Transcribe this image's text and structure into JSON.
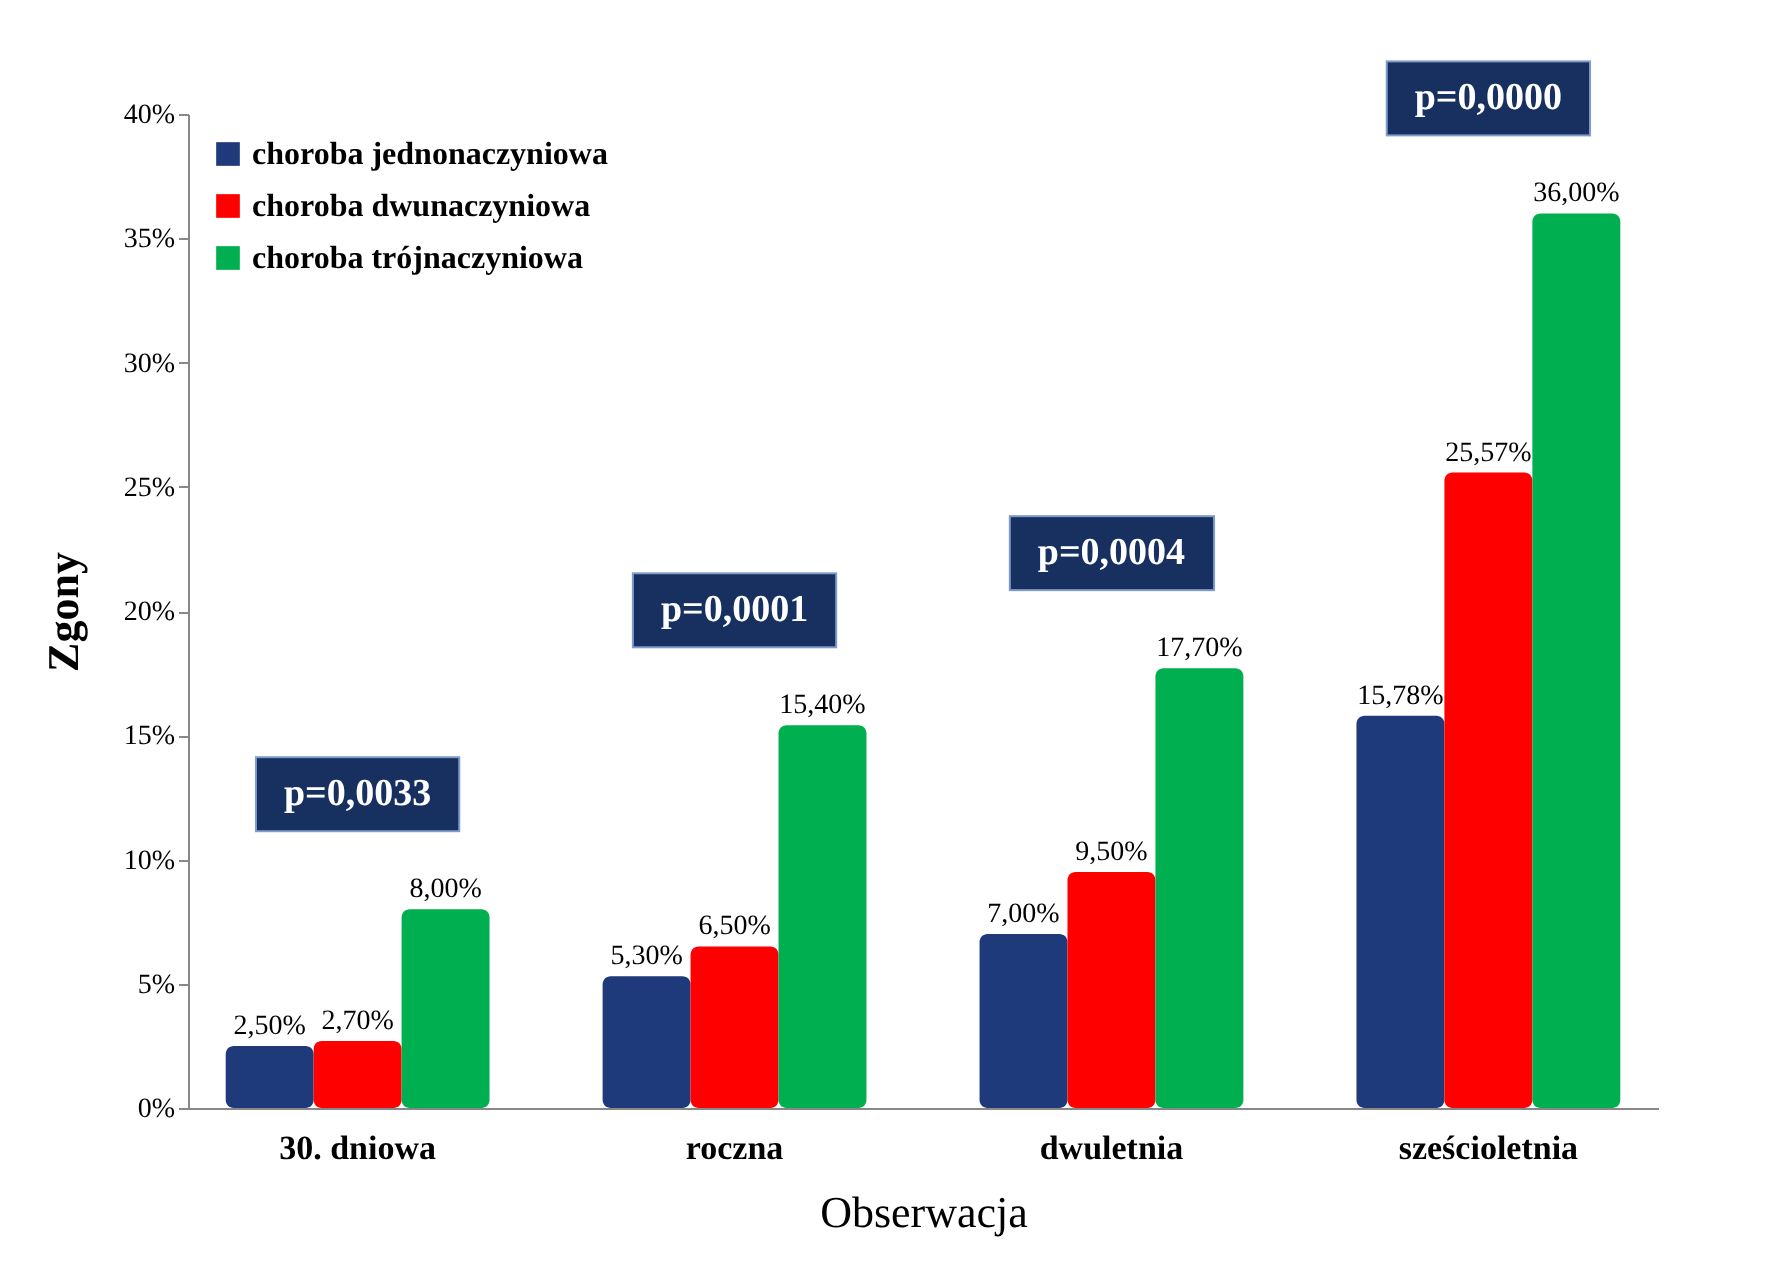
{
  "chart_data": {
    "type": "bar",
    "xlabel": "Obserwacja",
    "ylabel": "Zgony",
    "categories": [
      "30. dniowa",
      "roczna",
      "dwuletnia",
      "sześcioletnia"
    ],
    "series": [
      {
        "name": "choroba jednonaczyniowa",
        "color": "#1f3a7a",
        "values": [
          2.5,
          5.3,
          7.0,
          15.78
        ],
        "value_labels": [
          "2,50%",
          "5,30%",
          "7,00%",
          "15,78%"
        ]
      },
      {
        "name": "choroba dwunaczyniowa",
        "color": "#ff0000",
        "values": [
          2.7,
          6.5,
          9.5,
          25.57
        ],
        "value_labels": [
          "2,70%",
          "6,50%",
          "9,50%",
          "25,57%"
        ]
      },
      {
        "name": "choroba trójnaczyniowa",
        "color": "#00b050",
        "values": [
          8.0,
          15.4,
          17.7,
          36.0
        ],
        "value_labels": [
          "8,00%",
          "15,40%",
          "17,70%",
          "36,00%"
        ]
      }
    ],
    "ylim": [
      0,
      40
    ],
    "yticks": [
      {
        "value": 0,
        "label": "0%"
      },
      {
        "value": 5,
        "label": "5%"
      },
      {
        "value": 10,
        "label": "10%"
      },
      {
        "value": 15,
        "label": "15%"
      },
      {
        "value": 20,
        "label": "20%"
      },
      {
        "value": 25,
        "label": "25%"
      },
      {
        "value": 30,
        "label": "30%"
      },
      {
        "value": 35,
        "label": "35%"
      },
      {
        "value": 40,
        "label": "40%"
      }
    ],
    "annotations": [
      "p=0,0033",
      "p=0,0001",
      "p=0,0004",
      "p=0,0000"
    ],
    "legend": "top left",
    "grid": false
  }
}
